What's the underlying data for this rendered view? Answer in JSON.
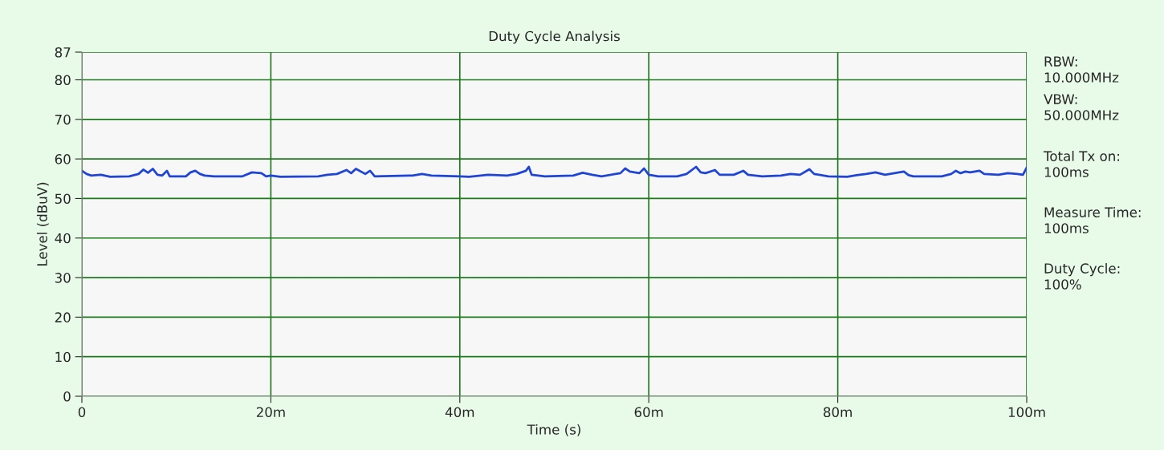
{
  "chart_data": {
    "type": "line",
    "title": "Duty Cycle Analysis",
    "xlabel": "Time (s)",
    "ylabel": "Level (dBuV)",
    "x": [
      0,
      0.5,
      1,
      2,
      3,
      5,
      6,
      6.5,
      7,
      7.5,
      8,
      8.5,
      9,
      9.3,
      11,
      11.5,
      12,
      12.5,
      13,
      14,
      17,
      18,
      19,
      19.5,
      20,
      21,
      25,
      26,
      27,
      28,
      28.5,
      29,
      30,
      30.5,
      31,
      35,
      36,
      37,
      40,
      41,
      43,
      45,
      46,
      47,
      47.3,
      47.6,
      49,
      52,
      53,
      54,
      55,
      57,
      57.5,
      58,
      59,
      59.5,
      60,
      61,
      63,
      64,
      65,
      65.5,
      66,
      67,
      67.5,
      69,
      70,
      70.5,
      72,
      74,
      75,
      76,
      77,
      77.5,
      79,
      81,
      82,
      83,
      84,
      85,
      86,
      87,
      87.5,
      88,
      91,
      92,
      92.5,
      93,
      93.5,
      94,
      95,
      95.5,
      97,
      98,
      99,
      99.6,
      100
    ],
    "series": [
      {
        "color": "#1f45d6",
        "values": [
          57.0,
          56.2,
          55.8,
          56.0,
          55.5,
          55.6,
          56.2,
          57.3,
          56.5,
          57.5,
          56.0,
          55.8,
          57.0,
          55.6,
          55.6,
          56.6,
          57.0,
          56.2,
          55.8,
          55.6,
          55.6,
          56.6,
          56.4,
          55.6,
          55.8,
          55.5,
          55.6,
          56.0,
          56.2,
          57.2,
          56.4,
          57.5,
          56.2,
          57.0,
          55.6,
          55.8,
          56.2,
          55.8,
          55.6,
          55.5,
          56.0,
          55.8,
          56.2,
          57.0,
          58.0,
          56.0,
          55.6,
          55.8,
          56.5,
          56.0,
          55.6,
          56.4,
          57.6,
          56.8,
          56.4,
          57.6,
          56.0,
          55.6,
          55.6,
          56.2,
          58.0,
          56.6,
          56.4,
          57.2,
          56.0,
          56.0,
          57.0,
          56.0,
          55.6,
          55.8,
          56.2,
          56.0,
          57.4,
          56.2,
          55.6,
          55.5,
          55.9,
          56.2,
          56.6,
          56.0,
          56.4,
          56.8,
          55.9,
          55.6,
          55.6,
          56.2,
          57.0,
          56.4,
          56.8,
          56.6,
          57.0,
          56.2,
          56.0,
          56.4,
          56.2,
          56.0,
          57.8
        ]
      }
    ],
    "xlim": [
      0,
      100
    ],
    "xticks": [
      0,
      {
        "value": 20,
        "label": "20m"
      },
      {
        "value": 40,
        "label": "40m"
      },
      {
        "value": 60,
        "label": "60m"
      },
      {
        "value": 80,
        "label": "80m"
      },
      {
        "value": 100,
        "label": "100m"
      }
    ],
    "ylim": [
      0,
      87
    ],
    "yticks": [
      0,
      10,
      20,
      30,
      40,
      50,
      60,
      70,
      80,
      87
    ],
    "grid": true,
    "marker": "none",
    "line_style": "solid",
    "annotations": [
      "RBW:\n10.000MHz",
      "VBW:\n50.000MHz",
      "Total Tx on:\n100ms",
      "Measure Time:\n100ms",
      "Duty Cycle:\n100%"
    ]
  }
}
